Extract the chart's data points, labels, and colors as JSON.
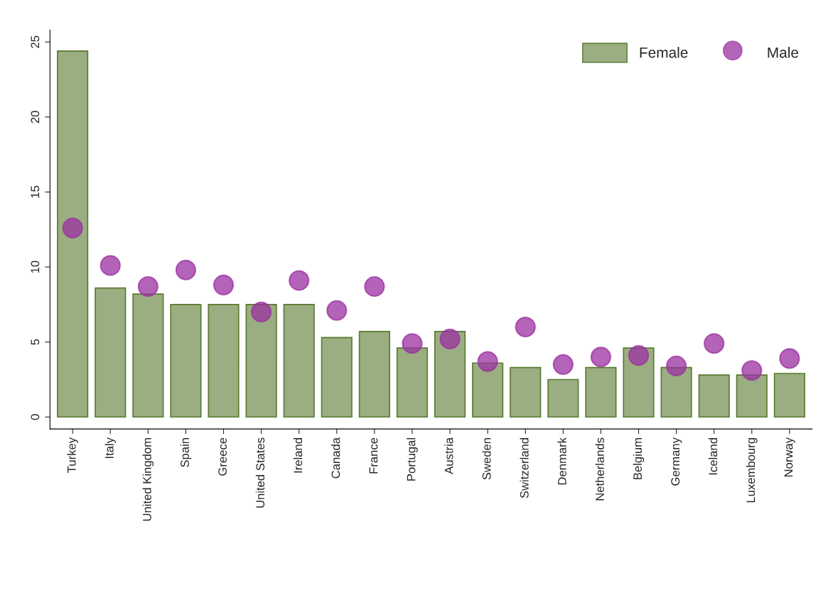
{
  "chart_data": {
    "type": "bar",
    "categories": [
      "Turkey",
      "Italy",
      "United Kingdom",
      "Spain",
      "Greece",
      "United States",
      "Ireland",
      "Canada",
      "France",
      "Portugal",
      "Austria",
      "Sweden",
      "Switzerland",
      "Denmark",
      "Netherlands",
      "Belgium",
      "Germany",
      "Iceland",
      "Luxembourg",
      "Norway"
    ],
    "series": [
      {
        "name": "Female",
        "color": "#9aae82",
        "values": [
          24.4,
          8.6,
          8.2,
          7.5,
          7.5,
          7.5,
          7.5,
          5.3,
          5.7,
          4.6,
          5.7,
          3.6,
          3.3,
          2.5,
          3.3,
          4.6,
          3.3,
          2.8,
          2.8,
          2.9
        ]
      },
      {
        "name": "Male",
        "type": "scatter",
        "color": "#9b30a0",
        "marker": "circle",
        "values": [
          12.6,
          10.1,
          8.7,
          9.8,
          8.8,
          7.0,
          9.1,
          7.1,
          8.7,
          4.9,
          5.2,
          3.7,
          6.0,
          3.5,
          4.0,
          4.1,
          3.4,
          4.9,
          3.1,
          3.9
        ]
      }
    ],
    "ylim": [
      -0.8,
      25.8
    ],
    "yticks": [
      0,
      5,
      10,
      15,
      20,
      25
    ],
    "grid": false,
    "legend": "top right"
  }
}
